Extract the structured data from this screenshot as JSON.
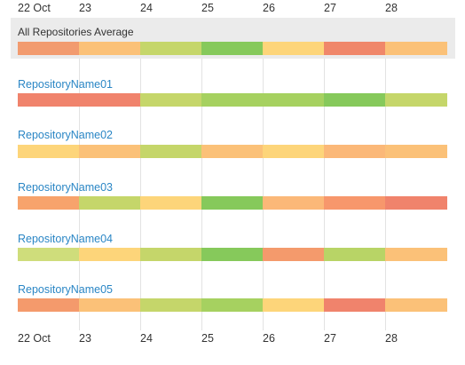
{
  "dates": [
    "22 Oct",
    "23",
    "24",
    "25",
    "26",
    "27",
    "28"
  ],
  "average": {
    "label": "All Repositories Average",
    "segment_colors": [
      "#f29b6f",
      "#fbc178",
      "#c5d66a",
      "#86c95b",
      "#fdd57a",
      "#f0876a",
      "#fbc178"
    ]
  },
  "repositories": [
    {
      "name": "RepositoryName01",
      "segment_colors": [
        "#f0836c",
        "#f0836c",
        "#c5d66a",
        "#a6d160",
        "#a6d160",
        "#86c95b",
        "#c5d66a"
      ]
    },
    {
      "name": "RepositoryName02",
      "segment_colors": [
        "#fdd57a",
        "#fbc178",
        "#c5d66a",
        "#fbc178",
        "#fdd57a",
        "#fbb878",
        "#fbc178"
      ]
    },
    {
      "name": "RepositoryName03",
      "segment_colors": [
        "#f7a36c",
        "#c5d66a",
        "#fdd57a",
        "#86c95b",
        "#fbb878",
        "#f7976c",
        "#f0836c"
      ]
    },
    {
      "name": "RepositoryName04",
      "segment_colors": [
        "#cfdd7b",
        "#fdd57a",
        "#c5d66a",
        "#86c95b",
        "#f49a6c",
        "#b8d466",
        "#fbc178"
      ]
    },
    {
      "name": "RepositoryName05",
      "segment_colors": [
        "#f49a6c",
        "#fbc178",
        "#c5d66a",
        "#a6d160",
        "#fdd57a",
        "#f0836c",
        "#fbc178"
      ]
    }
  ]
}
